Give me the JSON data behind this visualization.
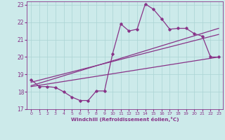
{
  "xlabel": "Windchill (Refroidissement éolien,°C)",
  "bg_color": "#cceaea",
  "grid_color": "#aad4d4",
  "line_color": "#883388",
  "xlim": [
    -0.5,
    23.5
  ],
  "ylim": [
    17,
    23.2
  ],
  "yticks": [
    17,
    18,
    19,
    20,
    21,
    22,
    23
  ],
  "xticks": [
    0,
    1,
    2,
    3,
    4,
    5,
    6,
    7,
    8,
    9,
    10,
    11,
    12,
    13,
    14,
    15,
    16,
    17,
    18,
    19,
    20,
    21,
    22,
    23
  ],
  "hours": [
    0,
    1,
    2,
    3,
    4,
    5,
    6,
    7,
    8,
    9,
    10,
    11,
    12,
    13,
    14,
    15,
    16,
    17,
    18,
    19,
    20,
    21,
    22,
    23
  ],
  "temp": [
    18.7,
    18.3,
    18.3,
    18.25,
    18.0,
    17.7,
    17.5,
    17.5,
    18.05,
    18.05,
    20.2,
    21.9,
    21.5,
    21.6,
    23.05,
    22.75,
    22.2,
    21.6,
    21.65,
    21.65,
    21.35,
    21.2,
    20.0,
    20.0
  ],
  "trend1_x": [
    0,
    23
  ],
  "trend1_y": [
    18.3,
    20.0
  ],
  "trend2_x": [
    0,
    23
  ],
  "trend2_y": [
    18.35,
    21.65
  ],
  "trend3_x": [
    0,
    23
  ],
  "trend3_y": [
    18.55,
    21.3
  ]
}
